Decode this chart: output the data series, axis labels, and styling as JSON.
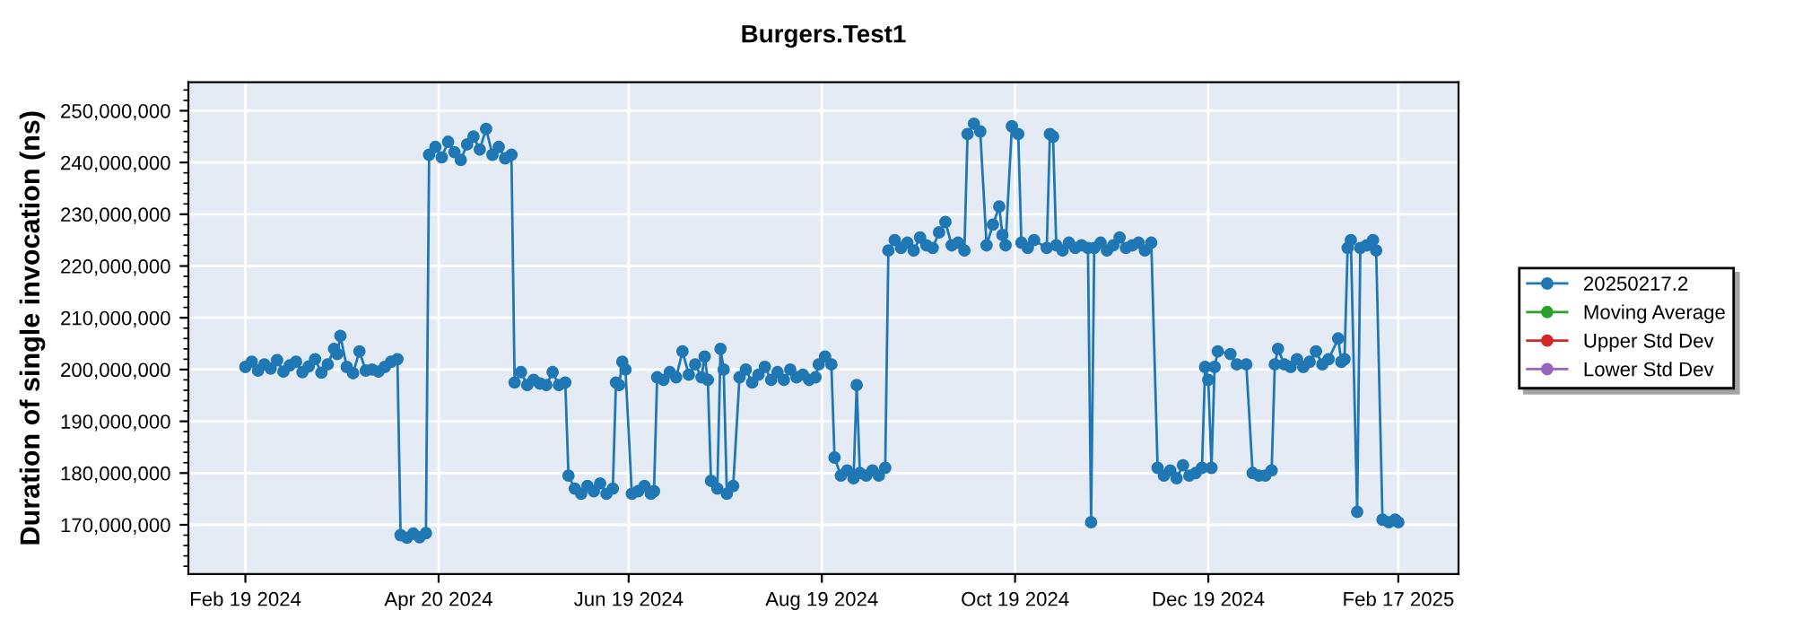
{
  "chart_data": {
    "type": "line",
    "title": "Burgers.Test1",
    "ylabel": "Duration of single invocation (ns)",
    "xlim": [
      "2024-02-01",
      "2025-03-08"
    ],
    "xticks": [
      {
        "value": "2024-02-19",
        "label": "Feb 19 2024"
      },
      {
        "value": "2024-04-20",
        "label": "Apr 20 2024"
      },
      {
        "value": "2024-06-19",
        "label": "Jun 19 2024"
      },
      {
        "value": "2024-08-19",
        "label": "Aug 19 2024"
      },
      {
        "value": "2024-10-19",
        "label": "Oct 19 2024"
      },
      {
        "value": "2024-12-19",
        "label": "Dec 19 2024"
      },
      {
        "value": "2025-02-17",
        "label": "Feb 17 2025"
      }
    ],
    "ylim": [
      160500000,
      255500000
    ],
    "yticks": [
      {
        "value": 170000000,
        "label": "170,000,000"
      },
      {
        "value": 180000000,
        "label": "180,000,000"
      },
      {
        "value": 190000000,
        "label": "190,000,000"
      },
      {
        "value": 200000000,
        "label": "200,000,000"
      },
      {
        "value": 210000000,
        "label": "210,000,000"
      },
      {
        "value": 220000000,
        "label": "220,000,000"
      },
      {
        "value": 230000000,
        "label": "230,000,000"
      },
      {
        "value": 240000000,
        "label": "240,000,000"
      },
      {
        "value": 250000000,
        "label": "250,000,000"
      }
    ],
    "grid": true,
    "legend": "right",
    "marker": "circle",
    "line_style": "solid",
    "series": [
      {
        "name": "20250217.2",
        "color": "#1f77b4",
        "x": [
          "2024-02-19",
          "2024-02-21",
          "2024-02-23",
          "2024-02-25",
          "2024-02-27",
          "2024-02-29",
          "2024-03-02",
          "2024-03-04",
          "2024-03-06",
          "2024-03-08",
          "2024-03-10",
          "2024-03-12",
          "2024-03-14",
          "2024-03-16",
          "2024-03-18",
          "2024-03-19",
          "2024-03-20",
          "2024-03-22",
          "2024-03-24",
          "2024-03-26",
          "2024-03-28",
          "2024-03-30",
          "2024-04-01",
          "2024-04-03",
          "2024-04-05",
          "2024-04-07",
          "2024-04-08",
          "2024-04-10",
          "2024-04-12",
          "2024-04-14",
          "2024-04-16",
          "2024-04-17",
          "2024-04-19",
          "2024-04-21",
          "2024-04-23",
          "2024-04-25",
          "2024-04-27",
          "2024-04-29",
          "2024-05-01",
          "2024-05-03",
          "2024-05-05",
          "2024-05-07",
          "2024-05-09",
          "2024-05-11",
          "2024-05-13",
          "2024-05-14",
          "2024-05-16",
          "2024-05-18",
          "2024-05-20",
          "2024-05-22",
          "2024-05-24",
          "2024-05-26",
          "2024-05-28",
          "2024-05-30",
          "2024-05-31",
          "2024-06-02",
          "2024-06-04",
          "2024-06-06",
          "2024-06-08",
          "2024-06-10",
          "2024-06-12",
          "2024-06-14",
          "2024-06-15",
          "2024-06-16",
          "2024-06-17",
          "2024-06-18",
          "2024-06-20",
          "2024-06-22",
          "2024-06-24",
          "2024-06-26",
          "2024-06-27",
          "2024-06-28",
          "2024-06-30",
          "2024-07-02",
          "2024-07-04",
          "2024-07-06",
          "2024-07-08",
          "2024-07-10",
          "2024-07-12",
          "2024-07-13",
          "2024-07-14",
          "2024-07-15",
          "2024-07-17",
          "2024-07-18",
          "2024-07-19",
          "2024-07-20",
          "2024-07-22",
          "2024-07-24",
          "2024-07-26",
          "2024-07-28",
          "2024-07-30",
          "2024-08-01",
          "2024-08-03",
          "2024-08-05",
          "2024-08-07",
          "2024-08-09",
          "2024-08-11",
          "2024-08-13",
          "2024-08-15",
          "2024-08-17",
          "2024-08-18",
          "2024-08-20",
          "2024-08-22",
          "2024-08-23",
          "2024-08-25",
          "2024-08-27",
          "2024-08-29",
          "2024-08-30",
          "2024-08-31",
          "2024-09-02",
          "2024-09-04",
          "2024-09-06",
          "2024-09-08",
          "2024-09-09",
          "2024-09-11",
          "2024-09-13",
          "2024-09-15",
          "2024-09-17",
          "2024-09-19",
          "2024-09-21",
          "2024-09-23",
          "2024-09-25",
          "2024-09-27",
          "2024-09-29",
          "2024-10-01",
          "2024-10-03",
          "2024-10-04",
          "2024-10-06",
          "2024-10-08",
          "2024-10-10",
          "2024-10-12",
          "2024-10-14",
          "2024-10-15",
          "2024-10-16",
          "2024-10-18",
          "2024-10-20",
          "2024-10-21",
          "2024-10-23",
          "2024-10-25",
          "2024-10-29",
          "2024-10-30",
          "2024-10-31",
          "2024-11-01",
          "2024-11-03",
          "2024-11-05",
          "2024-11-07",
          "2024-11-09",
          "2024-11-11",
          "2024-11-12",
          "2024-11-13",
          "2024-11-15",
          "2024-11-17",
          "2024-11-19",
          "2024-11-21",
          "2024-11-23",
          "2024-11-25",
          "2024-11-27",
          "2024-11-29",
          "2024-12-01",
          "2024-12-03",
          "2024-12-05",
          "2024-12-07",
          "2024-12-09",
          "2024-12-11",
          "2024-12-13",
          "2024-12-15",
          "2024-12-17",
          "2024-12-18",
          "2024-12-19",
          "2024-12-20",
          "2024-12-21",
          "2024-12-22",
          "2024-12-26",
          "2024-12-28",
          "2024-12-31",
          "2025-01-02",
          "2025-01-04",
          "2025-01-06",
          "2025-01-08",
          "2025-01-09",
          "2025-01-10",
          "2025-01-12",
          "2025-01-14",
          "2025-01-16",
          "2025-01-18",
          "2025-01-20",
          "2025-01-22",
          "2025-01-24",
          "2025-01-26",
          "2025-01-29",
          "2025-01-30",
          "2025-01-31",
          "2025-02-01",
          "2025-02-02",
          "2025-02-04",
          "2025-02-05",
          "2025-02-07",
          "2025-02-09",
          "2025-02-10",
          "2025-02-12",
          "2025-02-14",
          "2025-02-16",
          "2025-02-17"
        ],
        "values": [
          200500000,
          201500000,
          199800000,
          201000000,
          200200000,
          201800000,
          199600000,
          200800000,
          201500000,
          199500000,
          200600000,
          202000000,
          199400000,
          201000000,
          204000000,
          203000000,
          206500000,
          200500000,
          199300000,
          203500000,
          199800000,
          200000000,
          199600000,
          200500000,
          201500000,
          202000000,
          168000000,
          167500000,
          168300000,
          167600000,
          168400000,
          241500000,
          243000000,
          241000000,
          244000000,
          242000000,
          240500000,
          243500000,
          245000000,
          242500000,
          246500000,
          241500000,
          243000000,
          240800000,
          241500000,
          197500000,
          199500000,
          197000000,
          198000000,
          197300000,
          197000000,
          199500000,
          197000000,
          197500000,
          179500000,
          177000000,
          176000000,
          177500000,
          176500000,
          178000000,
          176000000,
          177000000,
          197500000,
          197000000,
          201500000,
          200000000,
          176000000,
          176500000,
          177500000,
          176000000,
          176500000,
          198500000,
          198000000,
          199500000,
          198500000,
          203500000,
          199000000,
          201000000,
          198500000,
          202500000,
          198000000,
          178500000,
          177000000,
          204000000,
          200000000,
          176000000,
          177500000,
          198500000,
          200000000,
          197500000,
          199000000,
          200500000,
          198000000,
          199500000,
          198000000,
          200000000,
          198500000,
          199000000,
          198000000,
          198500000,
          201000000,
          202500000,
          201000000,
          183000000,
          179500000,
          180500000,
          179000000,
          197000000,
          180000000,
          179500000,
          180500000,
          179500000,
          181000000,
          223000000,
          225000000,
          223500000,
          224500000,
          223000000,
          225500000,
          224000000,
          223500000,
          226500000,
          228500000,
          224000000,
          224500000,
          223000000,
          245500000,
          247500000,
          246000000,
          224000000,
          228000000,
          231500000,
          226000000,
          224000000,
          247000000,
          245500000,
          224500000,
          223500000,
          225000000,
          223500000,
          245500000,
          245000000,
          224000000,
          223000000,
          224500000,
          223500000,
          224000000,
          223500000,
          170500000,
          223500000,
          224500000,
          223000000,
          224000000,
          225500000,
          223500000,
          224000000,
          224500000,
          223000000,
          224500000,
          181000000,
          179500000,
          180500000,
          179000000,
          181500000,
          179500000,
          180000000,
          181000000,
          200500000,
          198000000,
          181000000,
          200500000,
          203500000,
          203000000,
          201000000,
          201000000,
          180000000,
          179500000,
          179500000,
          180500000,
          201000000,
          204000000,
          201000000,
          200500000,
          202000000,
          200500000,
          201500000,
          203500000,
          201000000,
          202000000,
          206000000,
          201500000,
          202000000,
          223500000,
          225000000,
          172500000,
          223500000,
          224000000,
          225000000,
          223000000,
          171000000,
          170500000,
          171000000,
          170500000
        ]
      },
      {
        "name": "Moving Average",
        "color": "#2ca02c"
      },
      {
        "name": "Upper Std Dev",
        "color": "#d62728"
      },
      {
        "name": "Lower Std Dev",
        "color": "#9467bd"
      }
    ]
  }
}
